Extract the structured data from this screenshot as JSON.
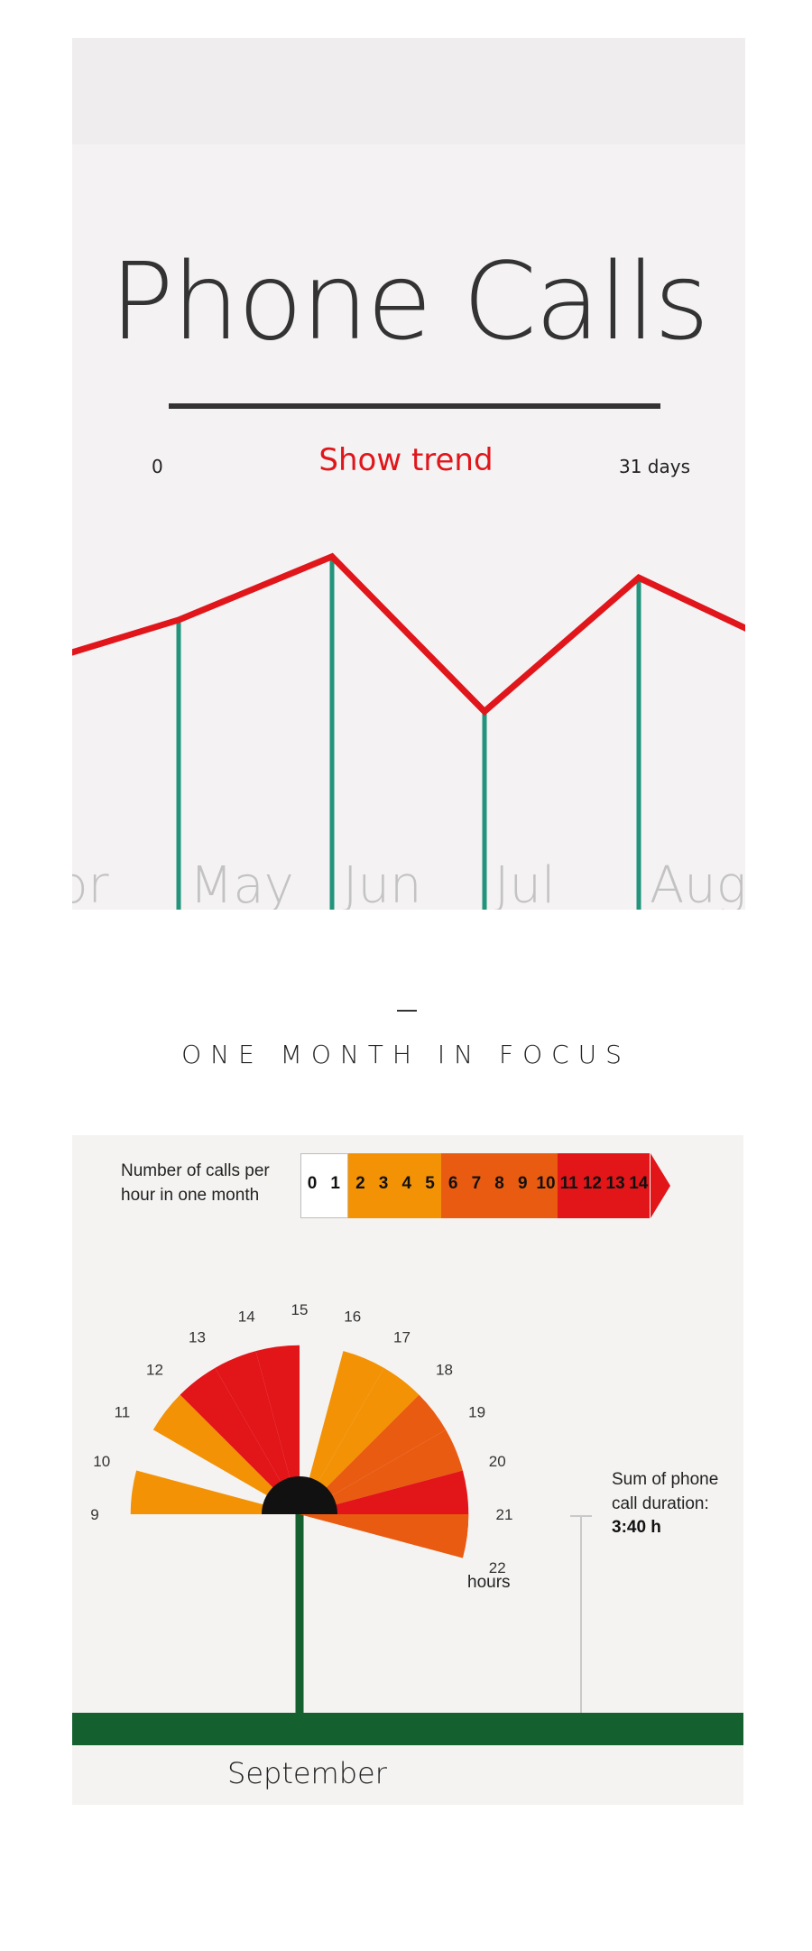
{
  "header": {
    "title": "Phone Calls",
    "range_min": "0",
    "range_max": "31 days",
    "trend_button": "Show trend"
  },
  "colors": {
    "trend_line": "#e0161b",
    "stem": "#22947c",
    "month_text": "#c3c3c3",
    "ground": "#14612f",
    "level_1": "#ffffff",
    "level_2": "#f39205",
    "level_3": "#e95b10",
    "level_4": "#e21519",
    "center": "#111111"
  },
  "chart_data": [
    {
      "type": "line",
      "title": "",
      "categories": [
        "Apr",
        "May",
        "Jun",
        "Jul",
        "Aug"
      ],
      "months_visible": [
        "pr",
        "May",
        "Jun",
        "Jul",
        "Aug"
      ],
      "series": [
        {
          "values": [
            3.0,
            3.5,
            4.4,
            2.2,
            4.1
          ]
        }
      ]
    },
    {
      "type": "radial-bar",
      "title": "",
      "month": "September",
      "unit_label": "hours",
      "legend_title": "Number of calls per hour in one month",
      "legend_values": [
        "0",
        "1",
        "2",
        "3",
        "4",
        "5",
        "6",
        "7",
        "8",
        "9",
        "10",
        "11",
        "12",
        "13",
        "14"
      ],
      "legend_groups": [
        {
          "values": [
            "0",
            "1"
          ],
          "color": "#ffffff"
        },
        {
          "values": [
            "2",
            "3",
            "4",
            "5"
          ],
          "color": "#f39205"
        },
        {
          "values": [
            "6",
            "7",
            "8",
            "9",
            "10"
          ],
          "color": "#e95b10"
        },
        {
          "values": [
            "11",
            "12",
            "13",
            "14"
          ],
          "color": "#e21519"
        }
      ],
      "hour_labels": [
        "9",
        "10",
        "11",
        "12",
        "13",
        "14",
        "15",
        "16",
        "17",
        "18",
        "19",
        "20",
        "21",
        "22"
      ],
      "hours": [
        {
          "hour": 9,
          "level": 2,
          "length": 0.85
        },
        {
          "hour": 10,
          "level": 0,
          "length": 0.0
        },
        {
          "hour": 11,
          "level": 2,
          "length": 0.85
        },
        {
          "hour": 12,
          "level": 4,
          "length": 0.85
        },
        {
          "hour": 13,
          "level": 4,
          "length": 0.85
        },
        {
          "hour": 14,
          "level": 4,
          "length": 0.85
        },
        {
          "hour": 15,
          "level": 0,
          "length": 0.0
        },
        {
          "hour": 16,
          "level": 2,
          "length": 0.85
        },
        {
          "hour": 17,
          "level": 2,
          "length": 0.85
        },
        {
          "hour": 18,
          "level": 3,
          "length": 0.85
        },
        {
          "hour": 19,
          "level": 3,
          "length": 0.85
        },
        {
          "hour": 20,
          "level": 4,
          "length": 0.85
        },
        {
          "hour": 21,
          "level": 3,
          "length": 0.85
        }
      ],
      "sum_label": "Sum of phone call duration:",
      "sum_value": "3:40 h"
    }
  ],
  "section": {
    "dash": "–",
    "heading": "ONE MONTH IN FOCUS"
  }
}
